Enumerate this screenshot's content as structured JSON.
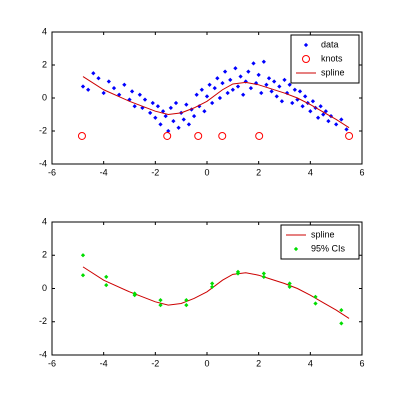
{
  "chart_data": [
    {
      "type": "line",
      "xlim": [
        -6,
        6
      ],
      "ylim": [
        -4,
        4
      ],
      "xticks": [
        -6,
        -4,
        -2,
        0,
        2,
        4,
        6
      ],
      "yticks": [
        -4,
        -2,
        0,
        2,
        4
      ],
      "grid": false,
      "legend": "northeast",
      "series": [
        {
          "name": "data",
          "color": "#0000ff",
          "marker": "dot",
          "line": false,
          "x": [
            -4.8,
            -4.6,
            -4.4,
            -4.2,
            -4.0,
            -3.8,
            -3.6,
            -3.4,
            -3.2,
            -3.0,
            -2.9,
            -2.8,
            -2.6,
            -2.5,
            -2.4,
            -2.2,
            -2.1,
            -2.0,
            -1.9,
            -1.8,
            -1.7,
            -1.6,
            -1.5,
            -1.4,
            -1.3,
            -1.2,
            -1.1,
            -1.0,
            -0.9,
            -0.8,
            -0.7,
            -0.6,
            -0.5,
            -0.4,
            -0.3,
            -0.2,
            -0.1,
            0.0,
            0.1,
            0.2,
            0.3,
            0.4,
            0.5,
            0.6,
            0.7,
            0.8,
            0.9,
            1.0,
            1.1,
            1.2,
            1.3,
            1.4,
            1.5,
            1.6,
            1.7,
            1.8,
            1.9,
            2.0,
            2.1,
            2.2,
            2.3,
            2.4,
            2.5,
            2.6,
            2.7,
            2.8,
            2.9,
            3.0,
            3.1,
            3.2,
            3.3,
            3.4,
            3.5,
            3.6,
            3.7,
            3.8,
            3.9,
            4.0,
            4.1,
            4.2,
            4.3,
            4.4,
            4.5,
            4.6,
            4.7,
            4.8,
            5.0,
            5.2,
            5.4
          ],
          "values": [
            0.7,
            0.5,
            1.5,
            1.2,
            0.3,
            1.0,
            0.6,
            0.2,
            0.8,
            -0.1,
            0.4,
            -0.5,
            0.2,
            -0.6,
            -0.1,
            -0.9,
            -0.3,
            -1.2,
            -0.5,
            -1.6,
            -0.8,
            -1.1,
            -2.0,
            -0.6,
            -1.4,
            -0.3,
            -1.8,
            -0.9,
            -1.3,
            -0.4,
            -1.6,
            -0.7,
            -1.1,
            0.2,
            -0.5,
            0.5,
            -0.8,
            0.1,
            0.8,
            -0.3,
            0.6,
            1.2,
            0.0,
            0.9,
            1.6,
            0.3,
            1.1,
            0.5,
            1.8,
            0.7,
            1.3,
            0.2,
            1.0,
            1.6,
            0.6,
            2.1,
            0.9,
            1.4,
            0.3,
            2.2,
            0.8,
            1.2,
            0.4,
            1.0,
            0.1,
            0.7,
            -0.2,
            1.1,
            0.3,
            0.8,
            -0.3,
            0.5,
            -0.1,
            0.4,
            -0.5,
            0.1,
            -0.3,
            -0.8,
            -0.2,
            -0.6,
            -1.2,
            -0.5,
            -1.0,
            -0.8,
            -1.4,
            -1.1,
            -1.6,
            -1.3,
            -1.9
          ]
        },
        {
          "name": "knots",
          "color": "#ff0000",
          "marker": "circle",
          "line": false,
          "x": [
            -4.84,
            -1.54,
            -0.34,
            0.59,
            2.02,
            5.5
          ],
          "values": [
            -2.3,
            -2.3,
            -2.3,
            -2.3,
            -2.3,
            -2.3
          ]
        },
        {
          "name": "spline",
          "color": "#cc0000",
          "marker": "none",
          "line": true,
          "x": [
            -4.8,
            -4.0,
            -3.0,
            -2.0,
            -1.5,
            -1.0,
            -0.5,
            0.0,
            0.6,
            1.0,
            1.5,
            2.0,
            2.5,
            3.0,
            3.5,
            4.0,
            4.5,
            5.0,
            5.5
          ],
          "values": [
            1.3,
            0.5,
            -0.2,
            -0.8,
            -1.0,
            -0.9,
            -0.6,
            -0.2,
            0.5,
            0.85,
            0.95,
            0.8,
            0.55,
            0.3,
            0.0,
            -0.4,
            -0.85,
            -1.3,
            -1.8
          ]
        }
      ]
    },
    {
      "type": "line",
      "xlim": [
        -6,
        6
      ],
      "ylim": [
        -4,
        4
      ],
      "xticks": [
        -6,
        -4,
        -2,
        0,
        2,
        4,
        6
      ],
      "yticks": [
        -4,
        -2,
        0,
        2,
        4
      ],
      "grid": false,
      "legend": "northeast",
      "series": [
        {
          "name": "spline",
          "color": "#cc0000",
          "marker": "none",
          "line": true,
          "x": [
            -4.8,
            -4.0,
            -3.0,
            -2.0,
            -1.5,
            -1.0,
            -0.5,
            0.0,
            0.6,
            1.0,
            1.5,
            2.0,
            2.5,
            3.0,
            3.5,
            4.0,
            4.5,
            5.0,
            5.5
          ],
          "values": [
            1.3,
            0.5,
            -0.2,
            -0.8,
            -1.0,
            -0.9,
            -0.6,
            -0.2,
            0.5,
            0.85,
            0.95,
            0.8,
            0.55,
            0.3,
            0.0,
            -0.4,
            -0.85,
            -1.3,
            -1.8
          ]
        },
        {
          "name": "95% CIs",
          "color": "#00dd00",
          "marker": "dot",
          "line": false,
          "x": [
            -4.8,
            -4.8,
            -3.9,
            -3.9,
            -2.8,
            -2.8,
            -1.8,
            -1.8,
            -0.8,
            -0.8,
            0.2,
            0.2,
            1.2,
            1.2,
            2.2,
            2.2,
            3.2,
            3.2,
            4.2,
            4.2,
            5.2,
            5.2
          ],
          "values": [
            0.8,
            2.0,
            0.2,
            0.7,
            -0.4,
            -0.3,
            -1.0,
            -0.7,
            -1.0,
            -0.7,
            0.1,
            0.3,
            0.9,
            1.0,
            0.7,
            0.9,
            0.1,
            0.3,
            -0.9,
            -0.5,
            -2.1,
            -1.3
          ]
        }
      ]
    }
  ]
}
